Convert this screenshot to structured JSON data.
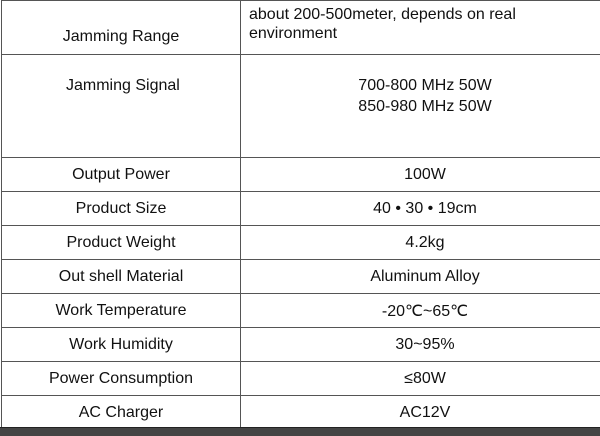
{
  "spec_table": {
    "rows": [
      {
        "label": "Jamming Range",
        "value": [
          "about 200-500meter, depends on real",
          "environment"
        ]
      },
      {
        "label": "Jamming Signal",
        "value": [
          "700-800 MHz 50W",
          "850-980 MHz 50W"
        ]
      },
      {
        "label": "Output Power",
        "value": [
          "100W"
        ]
      },
      {
        "label": "Product Size",
        "value": [
          "40 • 30 • 19cm"
        ]
      },
      {
        "label": "Product Weight",
        "value": [
          "4.2kg"
        ]
      },
      {
        "label": "Out shell Material",
        "value": [
          "Aluminum Alloy"
        ]
      },
      {
        "label": "Work Temperature",
        "value": [
          "-20℃~65℃"
        ]
      },
      {
        "label": "Work Humidity",
        "value": [
          "30~95%"
        ]
      },
      {
        "label": "Power Consumption",
        "value": [
          "≤80W"
        ]
      },
      {
        "label": "AC Charger",
        "value": [
          "AC12V"
        ]
      }
    ]
  }
}
